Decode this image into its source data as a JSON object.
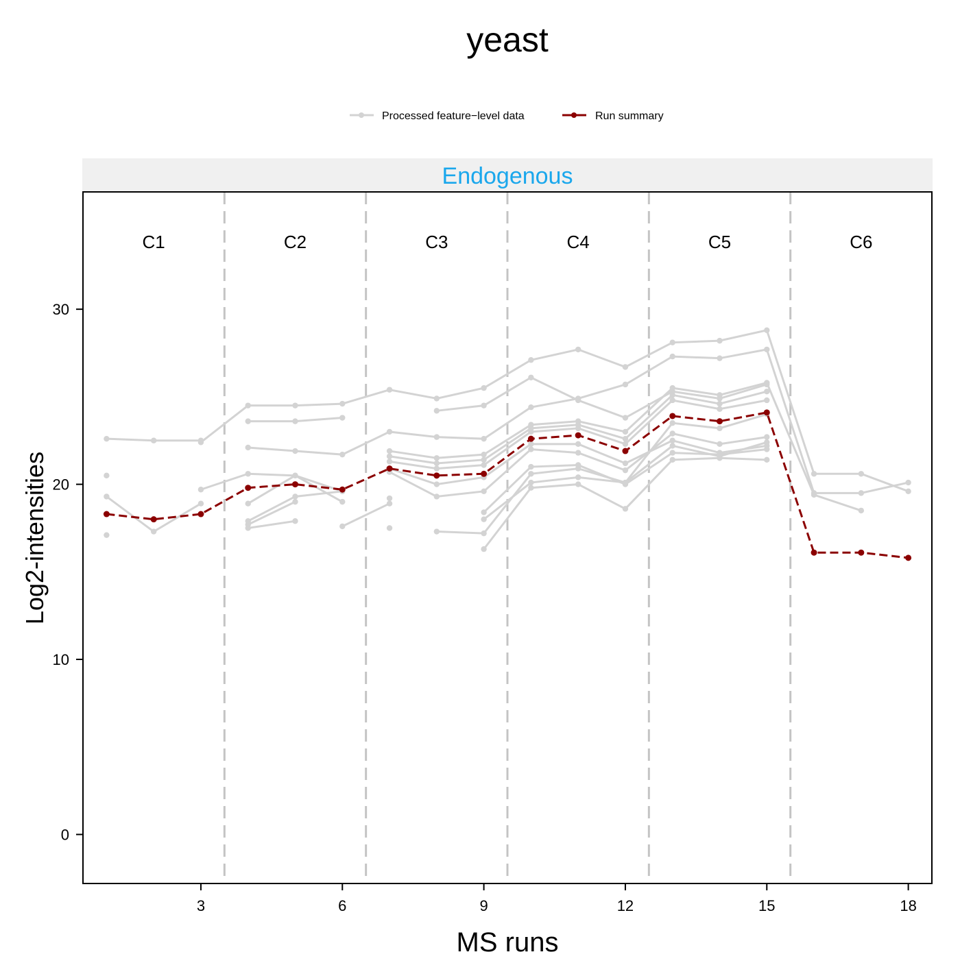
{
  "chart_data": {
    "type": "line",
    "title": "yeast",
    "xlabel": "MS runs",
    "ylabel": "Log2-intensities",
    "panel_label": "Endogenous",
    "xlim": [
      0.5,
      18.5
    ],
    "ylim": [
      -2.8,
      36.7
    ],
    "x_ticks": [
      3,
      6,
      9,
      12,
      15,
      18
    ],
    "y_ticks": [
      0,
      10,
      20,
      30
    ],
    "condition_labels": [
      "C1",
      "C2",
      "C3",
      "C4",
      "C5",
      "C6"
    ],
    "condition_centers": [
      2,
      5,
      8,
      11,
      14,
      17
    ],
    "condition_boundaries": [
      3.5,
      6.5,
      9.5,
      12.5,
      15.5
    ],
    "legend_position": "top",
    "legend": {
      "feature_label": "Processed feature−level data",
      "summary_label": "Run summary"
    },
    "colors": {
      "feature": "#d3d3d3",
      "summary": "#8b0000",
      "panel_label": "#1aa7ec",
      "strip_bg": "#f0f0f0",
      "separator": "#c4c4c4"
    },
    "features": [
      [
        [
          1,
          22.6
        ],
        [
          2,
          22.5
        ],
        [
          3,
          22.5
        ]
      ],
      [
        [
          1,
          20.5
        ]
      ],
      [
        [
          1,
          17.1
        ]
      ],
      [
        [
          1,
          19.3
        ],
        [
          2,
          17.3
        ],
        [
          3,
          18.9
        ]
      ],
      [
        [
          3,
          22.4
        ],
        [
          4,
          24.5
        ],
        [
          5,
          24.5
        ],
        [
          6,
          24.6
        ],
        [
          7,
          25.4
        ],
        [
          8,
          24.9
        ],
        [
          9,
          25.5
        ],
        [
          10,
          27.1
        ],
        [
          11,
          27.7
        ],
        [
          12,
          26.7
        ],
        [
          13,
          28.1
        ],
        [
          14,
          28.2
        ],
        [
          15,
          28.8
        ],
        [
          16,
          20.6
        ],
        [
          17,
          20.6
        ],
        [
          18,
          19.6
        ]
      ],
      [
        [
          3,
          19.7
        ],
        [
          4,
          20.6
        ],
        [
          5,
          20.5
        ],
        [
          6,
          19.0
        ]
      ],
      [
        [
          4,
          23.6
        ],
        [
          5,
          23.6
        ],
        [
          6,
          23.8
        ]
      ],
      [
        [
          4,
          22.1
        ],
        [
          5,
          21.9
        ],
        [
          6,
          21.7
        ],
        [
          7,
          23.0
        ],
        [
          8,
          22.7
        ],
        [
          9,
          22.6
        ],
        [
          10,
          24.4
        ],
        [
          11,
          24.9
        ],
        [
          12,
          25.7
        ],
        [
          13,
          27.3
        ],
        [
          14,
          27.2
        ],
        [
          15,
          27.7
        ],
        [
          16,
          19.5
        ],
        [
          17,
          19.5
        ],
        [
          18,
          20.1
        ]
      ],
      [
        [
          4,
          18.9
        ],
        [
          5,
          20.5
        ],
        [
          6,
          19.6
        ]
      ],
      [
        [
          4,
          17.9
        ],
        [
          5,
          19.3
        ],
        [
          6,
          19.6
        ]
      ],
      [
        [
          4,
          17.5
        ],
        [
          5,
          17.9
        ]
      ],
      [
        [
          4,
          17.7
        ],
        [
          5,
          19.0
        ]
      ],
      [
        [
          6,
          17.6
        ],
        [
          7,
          18.9
        ]
      ],
      [
        [
          7,
          19.2
        ]
      ],
      [
        [
          7,
          17.5
        ]
      ],
      [
        [
          7,
          21.9
        ],
        [
          8,
          21.5
        ],
        [
          9,
          21.7
        ],
        [
          10,
          23.4
        ],
        [
          11,
          23.6
        ],
        [
          12,
          23.0
        ],
        [
          13,
          25.5
        ],
        [
          14,
          25.1
        ],
        [
          15,
          25.8
        ],
        [
          16,
          19.4
        ],
        [
          17,
          18.5
        ]
      ],
      [
        [
          7,
          21.6
        ],
        [
          8,
          21.2
        ],
        [
          9,
          21.4
        ],
        [
          10,
          23.2
        ],
        [
          11,
          23.4
        ],
        [
          12,
          22.6
        ],
        [
          13,
          25.1
        ],
        [
          14,
          24.6
        ],
        [
          15,
          25.3
        ]
      ],
      [
        [
          7,
          21.3
        ],
        [
          8,
          20.9
        ],
        [
          9,
          21.1
        ],
        [
          10,
          23.0
        ],
        [
          11,
          23.2
        ],
        [
          12,
          22.3
        ],
        [
          13,
          24.8
        ],
        [
          14,
          24.3
        ],
        [
          15,
          24.8
        ]
      ],
      [
        [
          7,
          20.7
        ],
        [
          8,
          19.3
        ],
        [
          9,
          19.6
        ],
        [
          10,
          22.0
        ],
        [
          11,
          21.8
        ],
        [
          12,
          20.8
        ],
        [
          13,
          22.9
        ],
        [
          14,
          22.3
        ],
        [
          15,
          22.7
        ]
      ],
      [
        [
          7,
          20.9
        ],
        [
          8,
          20.0
        ],
        [
          9,
          20.4
        ],
        [
          10,
          22.3
        ],
        [
          11,
          22.3
        ],
        [
          12,
          21.2
        ],
        [
          13,
          22.5
        ],
        [
          14,
          21.8
        ],
        [
          15,
          22.2
        ]
      ],
      [
        [
          8,
          24.2
        ],
        [
          9,
          24.5
        ],
        [
          10,
          26.1
        ],
        [
          11,
          24.8
        ],
        [
          12,
          23.8
        ],
        [
          13,
          25.3
        ],
        [
          14,
          24.9
        ],
        [
          15,
          25.7
        ]
      ],
      [
        [
          8,
          17.3
        ],
        [
          9,
          17.2
        ],
        [
          10,
          20.6
        ],
        [
          11,
          20.9
        ],
        [
          12,
          20.1
        ],
        [
          13,
          22.2
        ],
        [
          14,
          21.6
        ],
        [
          15,
          22.4
        ]
      ],
      [
        [
          9,
          16.3
        ],
        [
          10,
          19.8
        ],
        [
          11,
          20.0
        ],
        [
          12,
          18.6
        ],
        [
          13,
          21.4
        ],
        [
          14,
          21.5
        ],
        [
          15,
          21.4
        ]
      ],
      [
        [
          9,
          18.4
        ],
        [
          10,
          21.0
        ],
        [
          11,
          21.1
        ],
        [
          12,
          20.0
        ],
        [
          13,
          21.8
        ],
        [
          14,
          21.7
        ],
        [
          15,
          22.0
        ]
      ],
      [
        [
          9,
          18.0
        ],
        [
          10,
          20.1
        ],
        [
          11,
          20.4
        ],
        [
          12,
          20.1
        ],
        [
          13,
          23.5
        ],
        [
          14,
          23.2
        ],
        [
          15,
          24.0
        ]
      ]
    ],
    "summary": {
      "x": [
        1,
        2,
        3,
        4,
        5,
        6,
        7,
        8,
        9,
        10,
        11,
        12,
        13,
        14,
        15,
        16,
        17,
        18
      ],
      "y": [
        18.3,
        18.0,
        18.3,
        19.8,
        20.0,
        19.7,
        20.9,
        20.5,
        20.6,
        22.6,
        22.8,
        21.9,
        23.9,
        23.6,
        24.1,
        16.1,
        16.1,
        15.8
      ]
    }
  }
}
